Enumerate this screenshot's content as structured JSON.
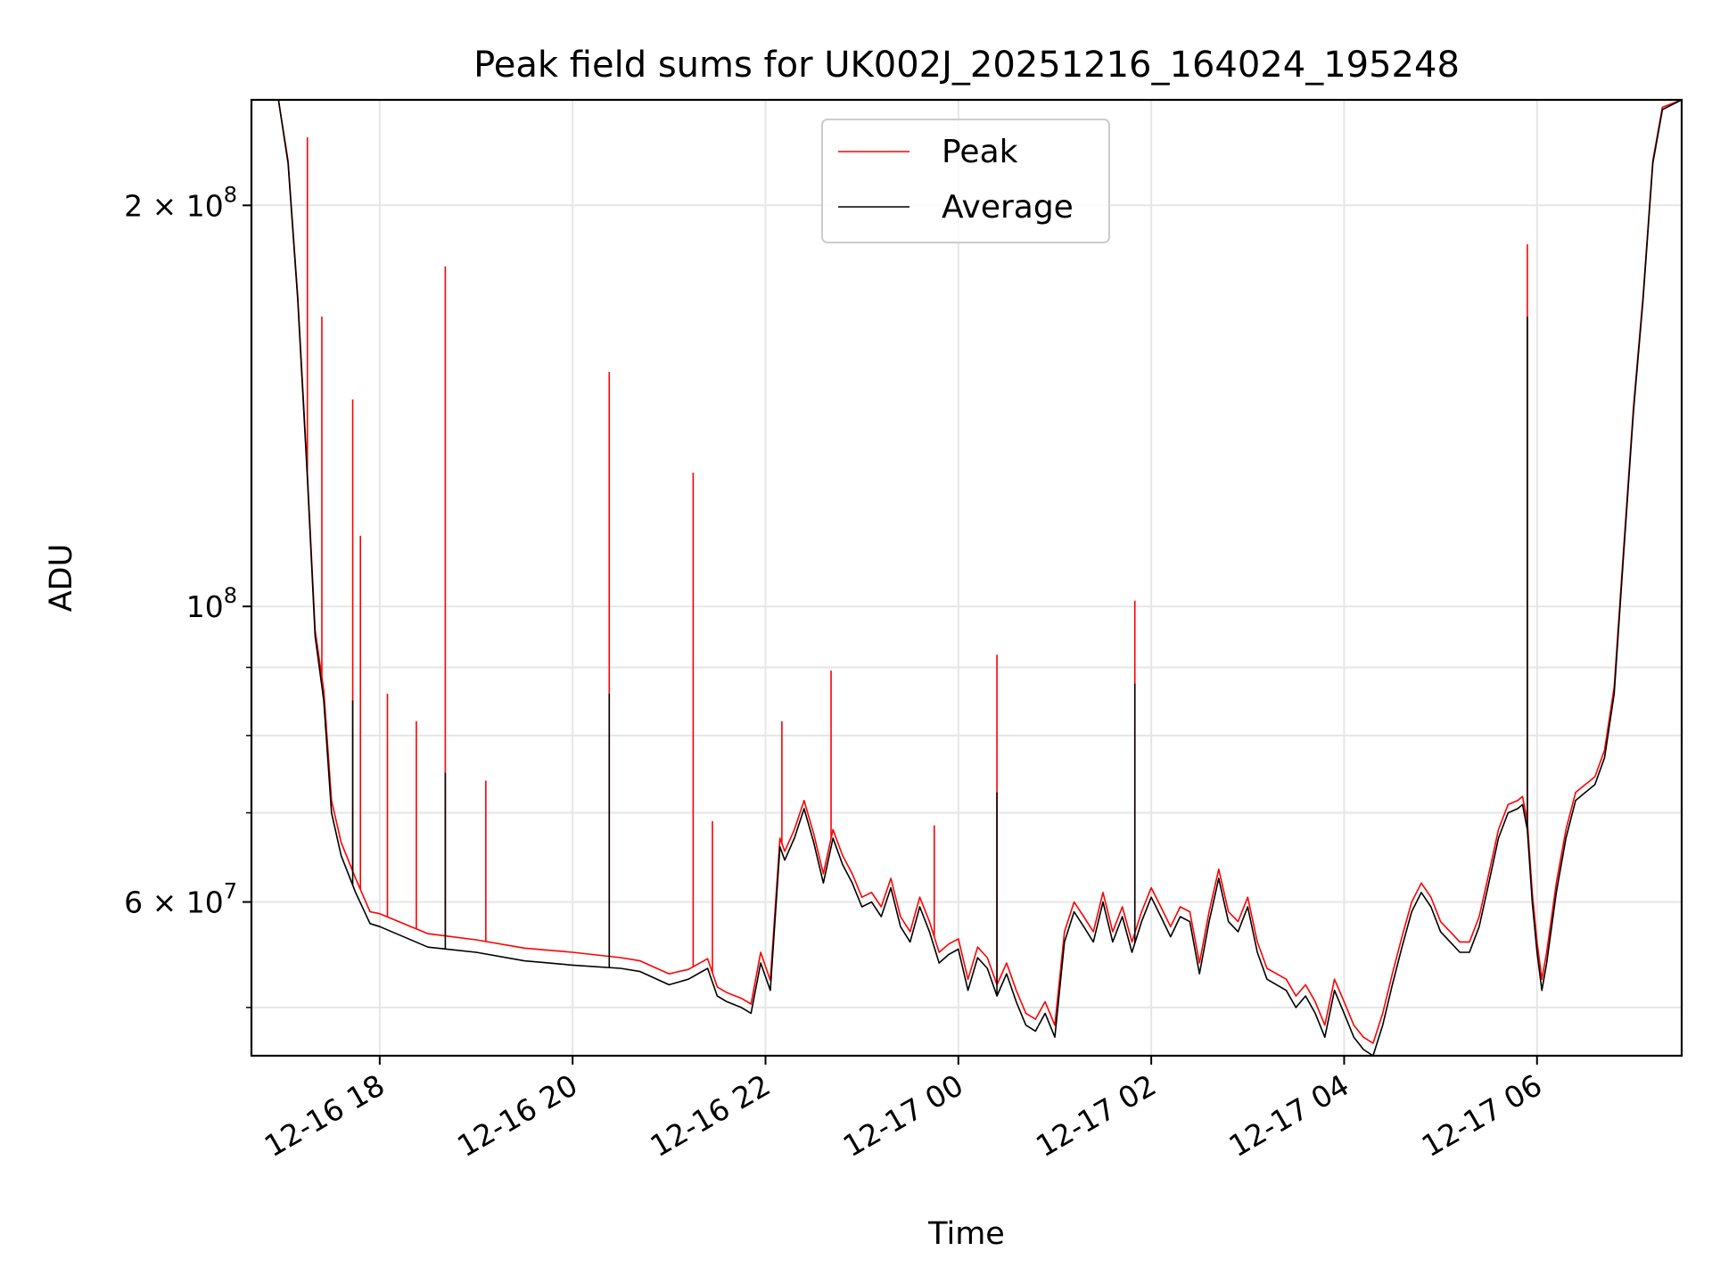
{
  "chart_data": {
    "type": "line",
    "title": "Peak field sums for UK002J_20251216_164024_195248",
    "xlabel": "Time",
    "ylabel": "ADU",
    "yscale": "log",
    "ylim": [
      46000000,
      240000000
    ],
    "xlim_hours": [
      16.67,
      31.5
    ],
    "grid": true,
    "legend": {
      "position": "upper center",
      "entries": [
        "Peak",
        "Average"
      ]
    },
    "x_ticks": [
      {
        "hour": 18,
        "label": "12-16 18"
      },
      {
        "hour": 20,
        "label": "12-16 20"
      },
      {
        "hour": 22,
        "label": "12-16 22"
      },
      {
        "hour": 24,
        "label": "12-17 00"
      },
      {
        "hour": 26,
        "label": "12-17 02"
      },
      {
        "hour": 28,
        "label": "12-17 04"
      },
      {
        "hour": 30,
        "label": "12-17 06"
      }
    ],
    "y_tick_labels": [
      {
        "value": 200000000,
        "mantissa": "2",
        "base": "× 10",
        "exp": "8"
      },
      {
        "value": 100000000,
        "mantissa": "",
        "base": "10",
        "exp": "8"
      },
      {
        "value": 60000000,
        "mantissa": "6",
        "base": "× 10",
        "exp": "7"
      }
    ],
    "y_minor_ticks": [
      50000000,
      70000000,
      80000000,
      90000000
    ],
    "series": [
      {
        "name": "Average",
        "color": "#000000",
        "x_hours": [
          16.67,
          16.95,
          17.05,
          17.15,
          17.25,
          17.33,
          17.42,
          17.5,
          17.6,
          17.75,
          17.9,
          18.0,
          18.5,
          19.0,
          19.5,
          20.0,
          20.5,
          20.7,
          21.0,
          21.2,
          21.4,
          21.5,
          21.6,
          21.75,
          21.85,
          21.95,
          22.05,
          22.15,
          22.2,
          22.3,
          22.4,
          22.5,
          22.6,
          22.7,
          22.8,
          22.9,
          23.0,
          23.1,
          23.2,
          23.3,
          23.4,
          23.5,
          23.6,
          23.7,
          23.8,
          23.9,
          24.0,
          24.1,
          24.2,
          24.3,
          24.4,
          24.5,
          24.6,
          24.7,
          24.8,
          24.9,
          25.0,
          25.1,
          25.2,
          25.3,
          25.4,
          25.5,
          25.6,
          25.7,
          25.8,
          25.9,
          26.0,
          26.1,
          26.2,
          26.3,
          26.4,
          26.5,
          26.6,
          26.7,
          26.8,
          26.9,
          27.0,
          27.1,
          27.2,
          27.3,
          27.4,
          27.5,
          27.6,
          27.7,
          27.8,
          27.9,
          28.0,
          28.1,
          28.2,
          28.3,
          28.4,
          28.5,
          28.6,
          28.7,
          28.8,
          28.9,
          29.0,
          29.1,
          29.2,
          29.3,
          29.4,
          29.5,
          29.6,
          29.7,
          29.8,
          29.85,
          29.9,
          29.95,
          30.0,
          30.05,
          30.1,
          30.2,
          30.3,
          30.4,
          30.5,
          30.6,
          30.7,
          30.8,
          30.9,
          31.0,
          31.1,
          31.2,
          31.3,
          31.5
        ],
        "values": [
          240000000,
          240000000,
          215000000,
          170000000,
          125000000,
          95000000,
          85000000,
          70000000,
          65000000,
          61000000,
          57800000,
          57500000,
          55500000,
          55000000,
          54200000,
          53800000,
          53500000,
          53200000,
          52000000,
          52500000,
          53500000,
          51000000,
          50500000,
          50000000,
          49500000,
          54000000,
          51500000,
          66000000,
          64500000,
          67000000,
          70500000,
          66500000,
          62000000,
          67000000,
          64000000,
          62000000,
          59500000,
          60000000,
          58500000,
          61500000,
          57500000,
          56000000,
          59500000,
          57000000,
          54000000,
          54800000,
          55300000,
          51500000,
          54500000,
          53500000,
          51000000,
          53000000,
          50500000,
          48500000,
          48000000,
          49500000,
          47500000,
          56000000,
          59000000,
          57500000,
          56000000,
          60000000,
          56000000,
          58500000,
          55000000,
          58000000,
          60500000,
          58500000,
          56500000,
          58500000,
          58000000,
          53000000,
          58000000,
          62500000,
          58000000,
          57000000,
          59500000,
          55000000,
          52500000,
          52000000,
          51500000,
          50000000,
          51000000,
          49500000,
          47500000,
          51500000,
          49500000,
          47500000,
          46500000,
          46000000,
          48500000,
          52000000,
          55500000,
          59000000,
          61000000,
          59500000,
          57000000,
          56000000,
          55000000,
          55000000,
          57500000,
          62000000,
          67000000,
          70000000,
          70500000,
          71000000,
          68000000,
          60000000,
          55000000,
          51500000,
          54000000,
          61000000,
          67000000,
          71500000,
          72500000,
          73500000,
          77000000,
          86000000,
          110000000,
          140000000,
          170000000,
          215000000,
          236000000,
          240000000
        ]
      },
      {
        "name": "Peak",
        "color": "#ff0000",
        "x_hours": [
          16.67,
          16.95,
          17.05,
          17.15,
          17.25,
          17.33,
          17.42,
          17.5,
          17.6,
          17.75,
          17.9,
          18.0,
          18.5,
          19.0,
          19.5,
          20.0,
          20.5,
          20.7,
          21.0,
          21.2,
          21.4,
          21.5,
          21.6,
          21.75,
          21.85,
          21.95,
          22.05,
          22.15,
          22.2,
          22.3,
          22.4,
          22.5,
          22.6,
          22.7,
          22.8,
          22.9,
          23.0,
          23.1,
          23.2,
          23.3,
          23.4,
          23.5,
          23.6,
          23.7,
          23.8,
          23.9,
          24.0,
          24.1,
          24.2,
          24.3,
          24.4,
          24.5,
          24.6,
          24.7,
          24.8,
          24.9,
          25.0,
          25.1,
          25.2,
          25.3,
          25.4,
          25.5,
          25.6,
          25.7,
          25.8,
          25.9,
          26.0,
          26.1,
          26.2,
          26.3,
          26.4,
          26.5,
          26.6,
          26.7,
          26.8,
          26.9,
          27.0,
          27.1,
          27.2,
          27.3,
          27.4,
          27.5,
          27.6,
          27.7,
          27.8,
          27.9,
          28.0,
          28.1,
          28.2,
          28.3,
          28.4,
          28.5,
          28.6,
          28.7,
          28.8,
          28.9,
          29.0,
          29.1,
          29.2,
          29.3,
          29.4,
          29.5,
          29.6,
          29.7,
          29.8,
          29.85,
          29.9,
          29.95,
          30.0,
          30.05,
          30.1,
          30.2,
          30.3,
          30.4,
          30.5,
          30.6,
          30.7,
          30.8,
          30.9,
          31.0,
          31.1,
          31.2,
          31.3,
          31.5
        ],
        "values": [
          240000000,
          240000000,
          216000000,
          171000000,
          126000000,
          96000000,
          86500000,
          71500000,
          66500000,
          62500000,
          59000000,
          58800000,
          56800000,
          56200000,
          55400000,
          55000000,
          54500000,
          54200000,
          53000000,
          53400000,
          54400000,
          51800000,
          51300000,
          50800000,
          50300000,
          55000000,
          52400000,
          67000000,
          65500000,
          68000000,
          71500000,
          67500000,
          63000000,
          68000000,
          65000000,
          63000000,
          60500000,
          61000000,
          59500000,
          62500000,
          58500000,
          57000000,
          60500000,
          58000000,
          55000000,
          55800000,
          56300000,
          52500000,
          55500000,
          54500000,
          52000000,
          54000000,
          51500000,
          49500000,
          49000000,
          50500000,
          48500000,
          57000000,
          60000000,
          58500000,
          57000000,
          61000000,
          57000000,
          59500000,
          56000000,
          59000000,
          61500000,
          59500000,
          57500000,
          59500000,
          59000000,
          54000000,
          59000000,
          63500000,
          59000000,
          58000000,
          60500000,
          56000000,
          53500000,
          53000000,
          52500000,
          51000000,
          52000000,
          50500000,
          48500000,
          52500000,
          50500000,
          48500000,
          47500000,
          47000000,
          49500000,
          53000000,
          56500000,
          60000000,
          62000000,
          60500000,
          58000000,
          57000000,
          56000000,
          56000000,
          58500000,
          63000000,
          68000000,
          71000000,
          71500000,
          72000000,
          69000000,
          61000000,
          56000000,
          52500000,
          55000000,
          62000000,
          68000000,
          72500000,
          73500000,
          74500000,
          78000000,
          87000000,
          111000000,
          141000000,
          171000000,
          216000000,
          237000000,
          240000000
        ]
      }
    ],
    "peak_spikes": [
      {
        "hour": 17.25,
        "value": 225000000
      },
      {
        "hour": 17.4,
        "value": 165000000
      },
      {
        "hour": 17.72,
        "value": 143000000
      },
      {
        "hour": 17.8,
        "value": 113000000
      },
      {
        "hour": 18.08,
        "value": 86000000
      },
      {
        "hour": 18.38,
        "value": 82000000
      },
      {
        "hour": 18.68,
        "value": 180000000
      },
      {
        "hour": 19.1,
        "value": 74000000
      },
      {
        "hour": 20.38,
        "value": 150000000
      },
      {
        "hour": 21.25,
        "value": 126000000
      },
      {
        "hour": 21.45,
        "value": 69000000
      },
      {
        "hour": 22.17,
        "value": 82000000
      },
      {
        "hour": 22.68,
        "value": 89500000
      },
      {
        "hour": 23.75,
        "value": 68500000
      },
      {
        "hour": 24.4,
        "value": 92000000
      },
      {
        "hour": 25.83,
        "value": 101000000
      },
      {
        "hour": 29.9,
        "value": 187000000
      }
    ],
    "average_spikes": [
      {
        "hour": 17.72,
        "value": 85000000
      },
      {
        "hour": 18.68,
        "value": 75000000
      },
      {
        "hour": 20.38,
        "value": 86000000
      },
      {
        "hour": 24.4,
        "value": 72500000
      },
      {
        "hour": 25.83,
        "value": 87500000
      },
      {
        "hour": 29.9,
        "value": 165000000
      }
    ]
  }
}
